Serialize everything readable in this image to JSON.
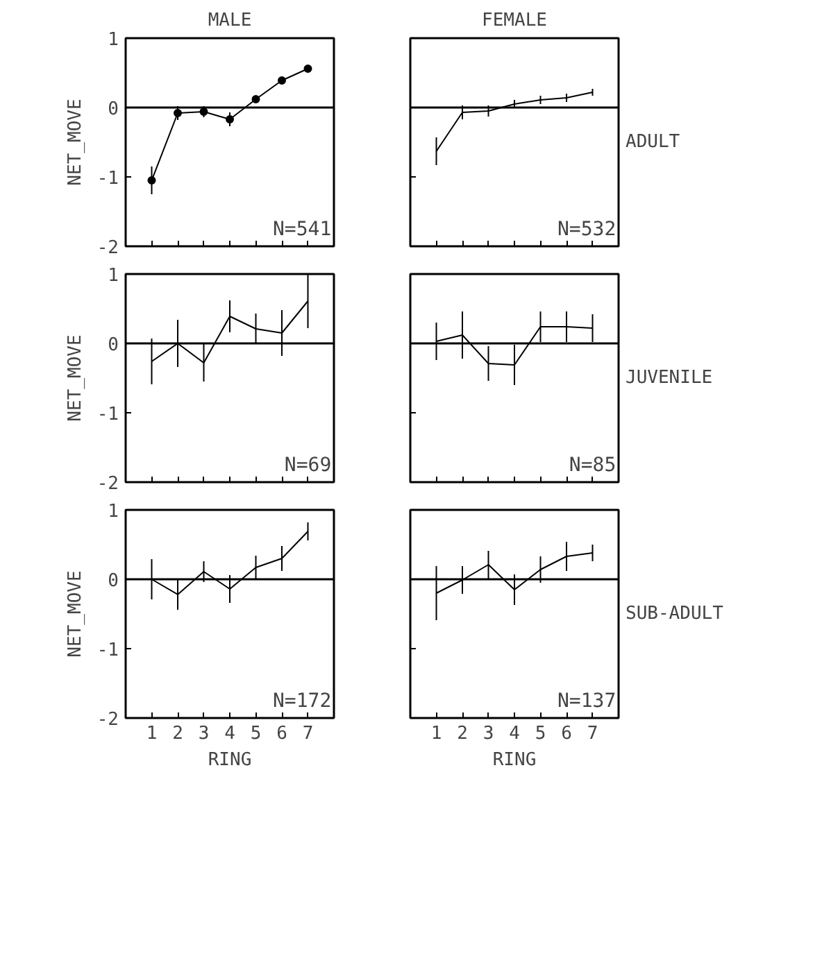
{
  "chart_data": [
    {
      "type": "line",
      "title": "MALE",
      "ylabel": "NET_MOVE",
      "x": [
        1,
        2,
        3,
        4,
        5,
        6,
        7
      ],
      "values": [
        -1.05,
        -0.08,
        -0.06,
        -0.17,
        0.12,
        0.39,
        0.56
      ],
      "errors": [
        0.2,
        0.1,
        0.08,
        0.1,
        0.05,
        0.05,
        0.03
      ],
      "color": "#000000",
      "marker": "circle",
      "xlim": [
        0,
        8
      ],
      "xticks": [
        1,
        2,
        3,
        4,
        5,
        6,
        7
      ],
      "ylim": [
        -2,
        1
      ],
      "yticks": [
        -2,
        -1,
        0,
        1
      ],
      "tick_labels": "y",
      "ref_lines": [
        {
          "axis": "y",
          "value": 0
        }
      ],
      "annotations": [
        "N=541"
      ]
    },
    {
      "type": "line",
      "title": "FEMALE",
      "x": [
        1,
        2,
        3,
        4,
        5,
        6,
        7
      ],
      "values": [
        -0.63,
        -0.07,
        -0.05,
        0.05,
        0.11,
        0.14,
        0.22
      ],
      "errors": [
        0.2,
        0.1,
        0.08,
        0.06,
        0.06,
        0.06,
        0.05
      ],
      "color": "#000000",
      "marker": "none",
      "xlim": [
        0,
        8
      ],
      "xticks": [
        1,
        2,
        3,
        4,
        5,
        6,
        7
      ],
      "ylim": [
        -2,
        1
      ],
      "yticks": [
        -2,
        -1,
        0,
        1
      ],
      "tick_labels": false,
      "ref_lines": [
        {
          "axis": "y",
          "value": 0
        }
      ],
      "annotations": [
        "N=532",
        "ADULT"
      ]
    },
    {
      "type": "line",
      "ylabel": "NET_MOVE",
      "x": [
        1,
        2,
        3,
        4,
        5,
        6,
        7
      ],
      "values": [
        -0.26,
        0.0,
        -0.28,
        0.39,
        0.21,
        0.15,
        0.61
      ],
      "errors": [
        0.33,
        0.34,
        0.27,
        0.23,
        0.22,
        0.33,
        0.39
      ],
      "color": "#000000",
      "marker": "none",
      "xlim": [
        0,
        8
      ],
      "xticks": [
        1,
        2,
        3,
        4,
        5,
        6,
        7
      ],
      "ylim": [
        -2,
        1
      ],
      "yticks": [
        -2,
        -1,
        0,
        1
      ],
      "tick_labels": "y",
      "ref_lines": [
        {
          "axis": "y",
          "value": 0
        }
      ],
      "annotations": [
        "N=69"
      ]
    },
    {
      "type": "line",
      "x": [
        1,
        2,
        3,
        4,
        5,
        6,
        7
      ],
      "values": [
        0.03,
        0.12,
        -0.29,
        -0.31,
        0.24,
        0.24,
        0.22
      ],
      "errors": [
        0.27,
        0.34,
        0.25,
        0.29,
        0.22,
        0.22,
        0.2
      ],
      "color": "#000000",
      "marker": "none",
      "xlim": [
        0,
        8
      ],
      "xticks": [
        1,
        2,
        3,
        4,
        5,
        6,
        7
      ],
      "ylim": [
        -2,
        1
      ],
      "yticks": [
        -2,
        -1,
        0,
        1
      ],
      "tick_labels": false,
      "ref_lines": [
        {
          "axis": "y",
          "value": 0
        }
      ],
      "annotations": [
        "N=85",
        "JUVENILE"
      ]
    },
    {
      "type": "line",
      "xlabel": "RING",
      "ylabel": "NET_MOVE",
      "x": [
        1,
        2,
        3,
        4,
        5,
        6,
        7
      ],
      "values": [
        0.0,
        -0.22,
        0.11,
        -0.14,
        0.17,
        0.3,
        0.69
      ],
      "errors": [
        0.29,
        0.22,
        0.15,
        0.2,
        0.17,
        0.18,
        0.13
      ],
      "color": "#000000",
      "marker": "none",
      "xlim": [
        0,
        8
      ],
      "xticks": [
        1,
        2,
        3,
        4,
        5,
        6,
        7
      ],
      "ylim": [
        -2,
        1
      ],
      "yticks": [
        -2,
        -1,
        0,
        1
      ],
      "ref_lines": [
        {
          "axis": "y",
          "value": 0
        }
      ],
      "annotations": [
        "N=172"
      ]
    },
    {
      "type": "line",
      "xlabel": "RING",
      "x": [
        1,
        2,
        3,
        4,
        5,
        6,
        7
      ],
      "values": [
        -0.2,
        -0.01,
        0.21,
        -0.15,
        0.14,
        0.33,
        0.38
      ],
      "errors": [
        0.39,
        0.2,
        0.2,
        0.22,
        0.19,
        0.21,
        0.12
      ],
      "color": "#000000",
      "marker": "none",
      "xlim": [
        0,
        8
      ],
      "xticks": [
        1,
        2,
        3,
        4,
        5,
        6,
        7
      ],
      "ylim": [
        -2,
        1
      ],
      "yticks": [
        -2,
        -1,
        0,
        1
      ],
      "tick_labels": "x",
      "ref_lines": [
        {
          "axis": "y",
          "value": 0
        }
      ],
      "annotations": [
        "N=137",
        "SUB-ADULT"
      ]
    }
  ]
}
